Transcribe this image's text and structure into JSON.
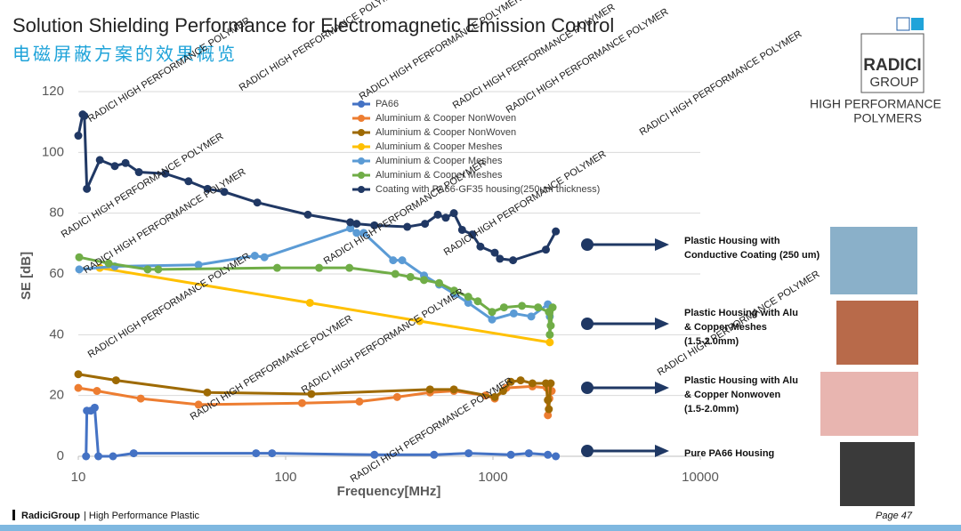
{
  "header": {
    "title": "Solution Shielding Performance for Electromagnetic Emission Control",
    "subtitle": "电磁屏蔽方案的效果概览"
  },
  "logo": {
    "name_top": "RADICI",
    "name_bottom": "GROUP",
    "tagline_1": "HIGH PERFORMANCE",
    "tagline_2": "POLYMERS"
  },
  "watermark": "RADICI HIGH PERFORMANCE POLYMER",
  "chart_data": {
    "type": "line",
    "x_label": "Frequency[MHz]",
    "y_label": "SE [dB]",
    "x_log": true,
    "xlim": [
      10,
      10000
    ],
    "xticks": [
      10,
      100,
      1000,
      10000
    ],
    "ylim": [
      0,
      120
    ],
    "yticks": [
      0,
      20,
      40,
      60,
      80,
      100,
      120
    ],
    "grid": true,
    "series": [
      {
        "name": "PA66",
        "color": "#4472c4",
        "x": [
          10.9,
          11,
          11.5,
          12,
          12.5,
          14.7,
          18.5,
          72,
          86,
          268,
          520,
          763,
          1220,
          1490,
          1840,
          2010
        ],
        "values": [
          0,
          15,
          15,
          16,
          0,
          0,
          1,
          1,
          1,
          0.5,
          0.5,
          1,
          0.5,
          1,
          0.5,
          0
        ]
      },
      {
        "name": "Aluminium & Cooper NonWoven",
        "color": "#ed7d31",
        "x": [
          10,
          12.3,
          20,
          38,
          120,
          227,
          345,
          497,
          648,
          920,
          1020,
          1160,
          1550,
          1820,
          1840,
          1870,
          1920
        ],
        "values": [
          22.5,
          21.5,
          19,
          17,
          17.5,
          18,
          19.5,
          21,
          21.5,
          20,
          19,
          22.5,
          23,
          22.5,
          13.5,
          19,
          21.5
        ]
      },
      {
        "name": "Aluminium & Cooper NonWoven",
        "color": "#9e6a03",
        "x": [
          10,
          15.2,
          41.9,
          133,
          497,
          648,
          1020,
          1120,
          1220,
          1360,
          1550,
          1800,
          1840,
          1860,
          1900
        ],
        "values": [
          27,
          25,
          21,
          20.5,
          22,
          22,
          19.5,
          21.5,
          24.5,
          25,
          24,
          24,
          18.5,
          15.5,
          24
        ]
      },
      {
        "name": "Aluminium & Cooper Meshes",
        "color": "#ffc000",
        "x": [
          12.7,
          131,
          443,
          1880
        ],
        "values": [
          62,
          50.5,
          44.5,
          37.5
        ]
      },
      {
        "name": "Aluminium & Cooper Meshes",
        "color": "#5b9bd5",
        "x": [
          10.1,
          15,
          38,
          71,
          79,
          205,
          220,
          238,
          330,
          365,
          465,
          550,
          650,
          760,
          990,
          1260,
          1530,
          1840,
          1880
        ],
        "values": [
          61.5,
          62.5,
          63,
          66,
          65.5,
          75,
          73.5,
          73.5,
          64.5,
          64.5,
          59.5,
          56.5,
          53.5,
          50.5,
          45,
          47,
          46,
          50,
          46
        ]
      },
      {
        "name": "Aluminium & Cooper Meshes",
        "color": "#70ad47",
        "x": [
          10.1,
          14,
          21.6,
          24.3,
          91,
          145,
          203,
          338,
          400,
          465,
          550,
          650,
          760,
          845,
          990,
          1130,
          1380,
          1650,
          1860,
          1880,
          1900,
          1940
        ],
        "values": [
          65.5,
          63.5,
          61.5,
          61.5,
          62,
          62,
          62,
          60,
          59,
          58,
          57,
          54.5,
          52.5,
          51,
          47.5,
          49,
          49.5,
          49,
          47.5,
          40,
          43,
          49
        ]
      },
      {
        "name": "Coating with PA66-GF35 housing(250um thickness)",
        "color": "#203864",
        "x": [
          10,
          10.5,
          10.7,
          11,
          12.7,
          15,
          16.9,
          19.6,
          26.3,
          34,
          42,
          50.6,
          73,
          128,
          205,
          220,
          268,
          386,
          470,
          542,
          592,
          648,
          710,
          795,
          870,
          1020,
          1080,
          1250,
          1800,
          2010
        ],
        "values": [
          105.5,
          112.5,
          112,
          88,
          97.5,
          95.5,
          96.5,
          93.5,
          93,
          90.5,
          88,
          87,
          83.5,
          79.5,
          77,
          76.5,
          76,
          75.5,
          76.5,
          79.5,
          78.5,
          80,
          74.5,
          73,
          69,
          67,
          65,
          64.5,
          68,
          74
        ]
      }
    ]
  },
  "annotations": [
    {
      "lines": [
        "Plastic Housing with",
        "Conductive Coating (250 um)"
      ]
    },
    {
      "lines": [
        "Plastic Housing with Alu",
        "& Copper Meshes",
        "(1.5-2.0mm)"
      ]
    },
    {
      "lines": [
        "Plastic Housing with Alu",
        "& Copper Nonwoven",
        "(1.5-2.0mm)"
      ]
    },
    {
      "lines": [
        "Pure PA66 Housing"
      ]
    }
  ],
  "footer": {
    "brand": "RadiciGroup",
    "text": "| High Performance Plastic",
    "page": "Page 47"
  }
}
